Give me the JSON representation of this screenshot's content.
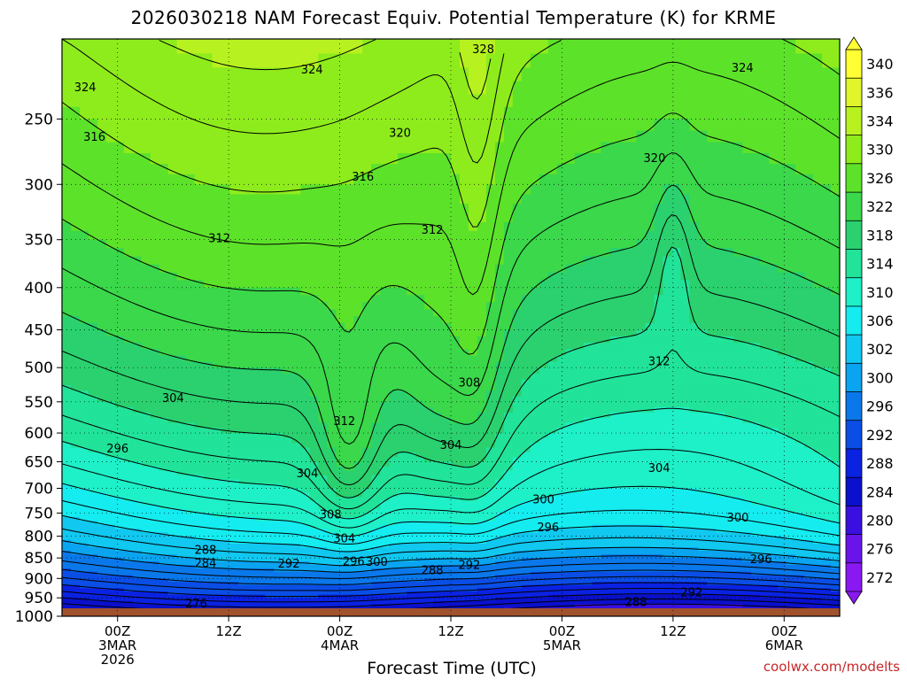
{
  "chart_data": {
    "type": "heatmap",
    "title": "2026030218 NAM Forecast Equiv. Potential Temperature (K) for KRME",
    "xlabel": "Forecast Time (UTC)",
    "ylabel": "",
    "watermark": "coolwx.com/modelts",
    "y_axis": {
      "ticks": [
        250,
        300,
        350,
        400,
        450,
        500,
        550,
        600,
        650,
        700,
        750,
        800,
        850,
        900,
        950,
        1000
      ],
      "range": [
        200,
        1000
      ],
      "scale": "log",
      "grid": true
    },
    "x_axis": {
      "ticks": [
        {
          "hour": 6,
          "line1": "00Z",
          "line2": "3MAR",
          "line3": "2026"
        },
        {
          "hour": 18,
          "line1": "12Z",
          "line2": "",
          "line3": ""
        },
        {
          "hour": 30,
          "line1": "00Z",
          "line2": "4MAR",
          "line3": ""
        },
        {
          "hour": 42,
          "line1": "12Z",
          "line2": "",
          "line3": ""
        },
        {
          "hour": 54,
          "line1": "00Z",
          "line2": "5MAR",
          "line3": ""
        },
        {
          "hour": 66,
          "line1": "12Z",
          "line2": "",
          "line3": ""
        },
        {
          "hour": 78,
          "line1": "00Z",
          "line2": "6MAR",
          "line3": ""
        }
      ],
      "range_hours": [
        0,
        84
      ],
      "grid": true
    },
    "colorbar": {
      "labels": [
        "340",
        "336",
        "334",
        "330",
        "326",
        "322",
        "318",
        "314",
        "310",
        "306",
        "302",
        "300",
        "296",
        "292",
        "288",
        "284",
        "280",
        "276",
        "272"
      ],
      "levels": [
        340,
        336,
        334,
        330,
        326,
        322,
        318,
        314,
        310,
        306,
        302,
        300,
        296,
        292,
        288,
        284,
        280,
        276,
        272
      ],
      "colors": [
        "#ffff33",
        "#e0f62a",
        "#b8f120",
        "#8eec1c",
        "#5de22a",
        "#3ad84a",
        "#2ad16e",
        "#21e39a",
        "#1ef0c8",
        "#14ecf0",
        "#10c8f0",
        "#0aa4f0",
        "#0a78ea",
        "#0a4ee6",
        "#0a22e2",
        "#0a10cc",
        "#3a10e0",
        "#6a14ec",
        "#8a18f2"
      ]
    },
    "contour_levels_labeled": [
      {
        "value": 328,
        "hour": 45.5,
        "p": 206
      },
      {
        "value": 324,
        "hour": 2.5,
        "p": 229
      },
      {
        "value": 324,
        "hour": 27,
        "p": 218
      },
      {
        "value": 324,
        "hour": 73.5,
        "p": 217
      },
      {
        "value": 320,
        "hour": 36.5,
        "p": 260
      },
      {
        "value": 320,
        "hour": 64,
        "p": 279
      },
      {
        "value": 316,
        "hour": 3.5,
        "p": 263
      },
      {
        "value": 316,
        "hour": 32.5,
        "p": 294
      },
      {
        "value": 312,
        "hour": 17,
        "p": 349
      },
      {
        "value": 312,
        "hour": 40,
        "p": 341
      },
      {
        "value": 312,
        "hour": 64.5,
        "p": 492
      },
      {
        "value": 312,
        "hour": 30.5,
        "p": 581
      },
      {
        "value": 308,
        "hour": 44,
        "p": 522
      },
      {
        "value": 308,
        "hour": 29,
        "p": 754
      },
      {
        "value": 304,
        "hour": 12,
        "p": 545
      },
      {
        "value": 304,
        "hour": 42,
        "p": 621
      },
      {
        "value": 304,
        "hour": 64.5,
        "p": 662
      },
      {
        "value": 304,
        "hour": 26.5,
        "p": 672
      },
      {
        "value": 304,
        "hour": 30.5,
        "p": 806
      },
      {
        "value": 300,
        "hour": 52,
        "p": 723
      },
      {
        "value": 300,
        "hour": 73,
        "p": 760
      },
      {
        "value": 300,
        "hour": 34,
        "p": 860
      },
      {
        "value": 296,
        "hour": 6,
        "p": 627
      },
      {
        "value": 296,
        "hour": 52.5,
        "p": 781
      },
      {
        "value": 296,
        "hour": 75.5,
        "p": 854
      },
      {
        "value": 296,
        "hour": 31.5,
        "p": 859
      },
      {
        "value": 292,
        "hour": 24.5,
        "p": 865
      },
      {
        "value": 292,
        "hour": 44,
        "p": 868
      },
      {
        "value": 292,
        "hour": 68,
        "p": 937
      },
      {
        "value": 288,
        "hour": 40,
        "p": 881
      },
      {
        "value": 288,
        "hour": 62,
        "p": 963
      },
      {
        "value": 288,
        "hour": 15.5,
        "p": 832
      },
      {
        "value": 284,
        "hour": 15.5,
        "p": 863
      },
      {
        "value": 276,
        "hour": 14.5,
        "p": 966
      }
    ]
  }
}
